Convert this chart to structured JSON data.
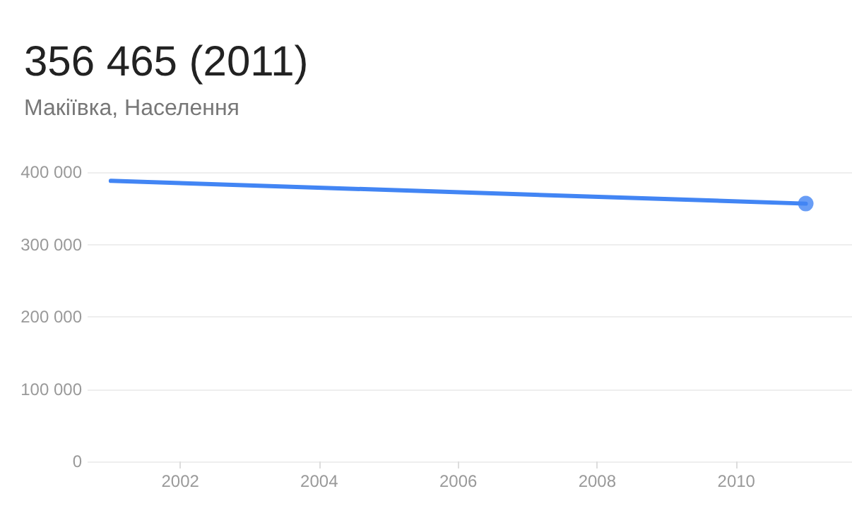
{
  "chart_data": {
    "type": "line",
    "title": "356 465 (2011)",
    "subtitle": "Макіївка, Населення",
    "series": [
      {
        "color": "#4285f4",
        "x": [
          "2001",
          "2011"
        ],
        "values": [
          388000,
          356465
        ],
        "marker": "none"
      },
      {
        "type": "scatter",
        "color": "#4285f4",
        "x": [
          "2011"
        ],
        "values": [
          356465
        ],
        "marker": "circle"
      }
    ],
    "xlim": [
      "2000-09",
      "2011-09"
    ],
    "xticks": [
      {
        "value": "2002",
        "label": "2002"
      },
      {
        "value": "2004",
        "label": "2004"
      },
      {
        "value": "2006",
        "label": "2006"
      },
      {
        "value": "2008",
        "label": "2008"
      },
      {
        "value": "2010",
        "label": "2010"
      }
    ],
    "ylim": [
      0,
      400000
    ],
    "yticks": [
      {
        "value": 0,
        "label": "0"
      },
      {
        "value": 100000,
        "label": "100 000"
      },
      {
        "value": 200000,
        "label": "200 000"
      },
      {
        "value": 300000,
        "label": "300 000"
      },
      {
        "value": 400000,
        "label": "400 000"
      }
    ],
    "grid": "y",
    "line_style": "solid"
  }
}
